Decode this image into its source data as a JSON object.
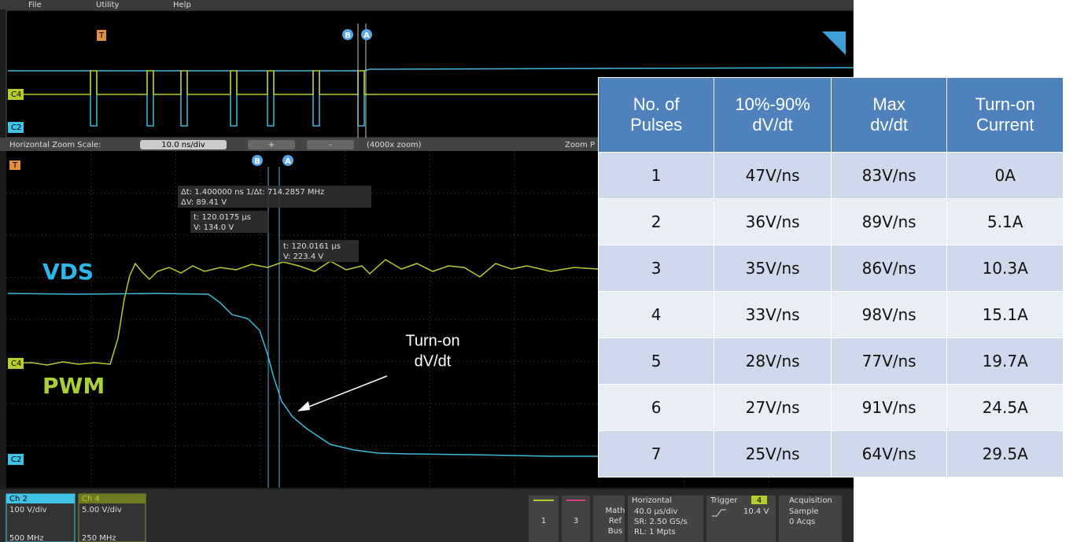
{
  "menu": [
    "File",
    "Utility",
    "Help"
  ],
  "zoom_bar": {
    "label": "Horizontal Zoom Scale:",
    "scale": "10.0 ns/div",
    "plus": "+",
    "minus": "-",
    "zoom": "(4000x zoom)",
    "right": "Zoom P"
  },
  "cursors": {
    "b": "B",
    "a": "A"
  },
  "channel_tags": {
    "c4": "C4",
    "c2": "C2",
    "trigger": "T"
  },
  "measurements": {
    "delta": "Δt: 1.400000 ns  1/Δt:  714.2857 MHz",
    "delta_v": "ΔV: 89.41 V",
    "b_t": "t:  120.0175 µs",
    "b_v": "V:  134.0 V",
    "a_t": "t:  120.0161 µs",
    "a_v": "V:  223.4 V"
  },
  "labels": {
    "vds": "VDS",
    "pwm": "PWM",
    "annotation": [
      "Turn-on",
      "dV/dt"
    ]
  },
  "table": {
    "header": [
      [
        "No. of",
        "Pulses"
      ],
      [
        "10%-90%",
        "dV/dt"
      ],
      [
        "Max",
        "dv/dt"
      ],
      [
        "Turn-on",
        "Current"
      ]
    ],
    "rows": [
      [
        "1",
        "47V/ns",
        "83V/ns",
        "0A"
      ],
      [
        "2",
        "36V/ns",
        "89V/ns",
        "5.1A"
      ],
      [
        "3",
        "35V/ns",
        "86V/ns",
        "10.3A"
      ],
      [
        "4",
        "33V/ns",
        "98V/ns",
        "15.1A"
      ],
      [
        "5",
        "28V/ns",
        "77V/ns",
        "19.7A"
      ],
      [
        "6",
        "27V/ns",
        "91V/ns",
        "24.5A"
      ],
      [
        "7",
        "25V/ns",
        "64V/ns",
        "29.5A"
      ]
    ]
  },
  "status_bar": {
    "ch2": {
      "name": "Ch 2",
      "scale": "100 V/div",
      "bandwidth": "500 MHz"
    },
    "ch4": {
      "name": "Ch 4",
      "scale": "5.00 V/div",
      "bandwidth": "250 MHz"
    },
    "buttons": [
      "1",
      "3"
    ],
    "math": [
      "Math",
      "Ref",
      "Bus"
    ],
    "horizontal": {
      "title": "Horizontal",
      "lines": [
        "40.0 µs/div",
        "SR: 2.50 GS/s",
        "RL: 1 Mpts"
      ]
    },
    "trigger": {
      "title": "Trigger",
      "source": "4",
      "level": "10.4 V"
    },
    "acquisition": {
      "title": "Acquisition",
      "lines": [
        "Sample",
        "0 Acqs"
      ]
    }
  }
}
